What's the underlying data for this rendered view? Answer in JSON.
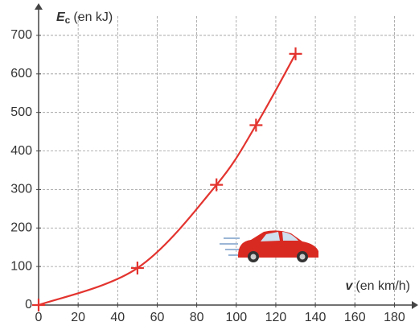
{
  "chart_data": {
    "type": "line",
    "y_label": {
      "symbol": "E",
      "subscript": "c",
      "unit": "(en kJ)"
    },
    "x_label": {
      "symbol": "v",
      "unit": "(en km/h)"
    },
    "x": [
      0,
      50,
      90,
      110,
      130
    ],
    "series": [
      {
        "color": "#e3342f",
        "values": [
          0,
          96,
          312,
          467,
          652
        ]
      }
    ],
    "xlim": [
      0,
      190
    ],
    "xticks": [
      0,
      20,
      40,
      60,
      80,
      100,
      120,
      140,
      160,
      180
    ],
    "ylim": [
      0,
      750
    ],
    "yticks": [
      0,
      100,
      200,
      300,
      400,
      500,
      600,
      700
    ],
    "grid": true
  }
}
